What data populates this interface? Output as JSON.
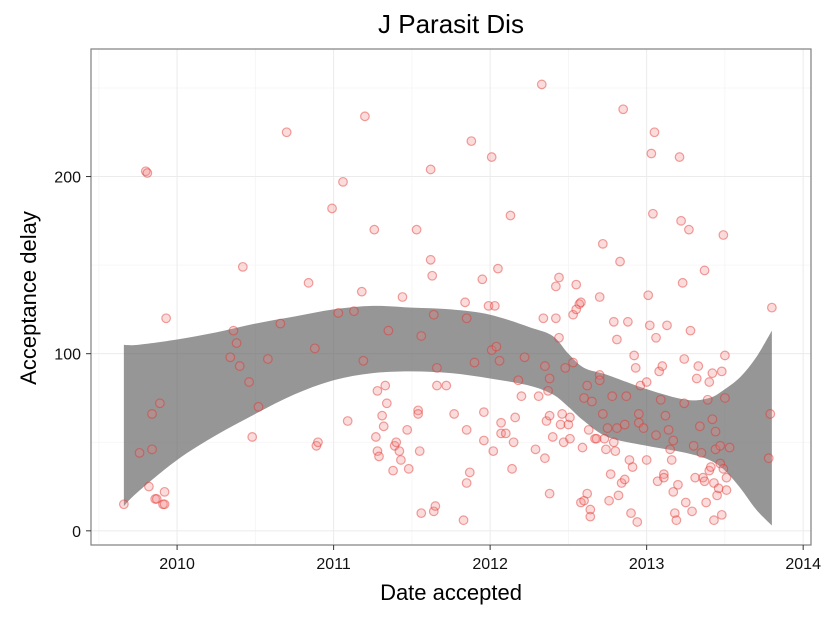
{
  "chart_data": {
    "type": "scatter",
    "title": "J Parasit Dis",
    "xlabel": "Date accepted",
    "ylabel": "Acceptance delay",
    "xlim": [
      2009.45,
      2014.05
    ],
    "ylim": [
      -8,
      272
    ],
    "x_ticks": [
      2010,
      2011,
      2012,
      2013,
      2014
    ],
    "x_tick_labels": [
      "2010",
      "2011",
      "2012",
      "2013",
      "2014"
    ],
    "y_ticks": [
      0,
      100,
      200
    ],
    "y_tick_labels": [
      "0",
      "100",
      "200"
    ],
    "grid": true,
    "legend": "none",
    "point_color": "#f08080",
    "band_color": "#5a5a5a",
    "points": [
      [
        2009.66,
        15
      ],
      [
        2009.76,
        44
      ],
      [
        2009.8,
        203
      ],
      [
        2009.81,
        202
      ],
      [
        2009.82,
        25
      ],
      [
        2009.84,
        66
      ],
      [
        2009.84,
        46
      ],
      [
        2009.86,
        18
      ],
      [
        2009.87,
        18
      ],
      [
        2009.89,
        72
      ],
      [
        2009.91,
        15
      ],
      [
        2009.92,
        15
      ],
      [
        2009.92,
        22
      ],
      [
        2009.93,
        120
      ],
      [
        2010.34,
        98
      ],
      [
        2010.36,
        113
      ],
      [
        2010.38,
        106
      ],
      [
        2010.4,
        93
      ],
      [
        2010.42,
        149
      ],
      [
        2010.46,
        84
      ],
      [
        2010.48,
        53
      ],
      [
        2010.52,
        70
      ],
      [
        2010.58,
        97
      ],
      [
        2010.66,
        117
      ],
      [
        2010.7,
        225
      ],
      [
        2010.84,
        140
      ],
      [
        2010.88,
        103
      ],
      [
        2010.89,
        48
      ],
      [
        2010.9,
        50
      ],
      [
        2010.99,
        182
      ],
      [
        2011.03,
        123
      ],
      [
        2011.06,
        197
      ],
      [
        2011.09,
        62
      ],
      [
        2011.13,
        124
      ],
      [
        2011.18,
        135
      ],
      [
        2011.19,
        96
      ],
      [
        2011.2,
        234
      ],
      [
        2011.26,
        170
      ],
      [
        2011.27,
        53
      ],
      [
        2011.28,
        79
      ],
      [
        2011.28,
        45
      ],
      [
        2011.29,
        42
      ],
      [
        2011.31,
        65
      ],
      [
        2011.32,
        59
      ],
      [
        2011.33,
        82
      ],
      [
        2011.34,
        72
      ],
      [
        2011.35,
        113
      ],
      [
        2011.38,
        34
      ],
      [
        2011.39,
        48
      ],
      [
        2011.4,
        50
      ],
      [
        2011.42,
        45
      ],
      [
        2011.43,
        40
      ],
      [
        2011.44,
        132
      ],
      [
        2011.47,
        57
      ],
      [
        2011.48,
        35
      ],
      [
        2011.53,
        170
      ],
      [
        2011.54,
        68
      ],
      [
        2011.54,
        66
      ],
      [
        2011.55,
        45
      ],
      [
        2011.56,
        10
      ],
      [
        2011.56,
        110
      ],
      [
        2011.62,
        204
      ],
      [
        2011.62,
        153
      ],
      [
        2011.63,
        144
      ],
      [
        2011.64,
        122
      ],
      [
        2011.64,
        11
      ],
      [
        2011.65,
        14
      ],
      [
        2011.66,
        82
      ],
      [
        2011.66,
        92
      ],
      [
        2011.72,
        82
      ],
      [
        2011.77,
        66
      ],
      [
        2011.83,
        6
      ],
      [
        2011.84,
        129
      ],
      [
        2011.85,
        120
      ],
      [
        2011.85,
        57
      ],
      [
        2011.85,
        27
      ],
      [
        2011.87,
        33
      ],
      [
        2011.88,
        220
      ],
      [
        2011.9,
        95
      ],
      [
        2011.95,
        142
      ],
      [
        2011.96,
        67
      ],
      [
        2011.96,
        51
      ],
      [
        2011.99,
        127
      ],
      [
        2012.01,
        211
      ],
      [
        2012.01,
        102
      ],
      [
        2012.02,
        45
      ],
      [
        2012.03,
        127
      ],
      [
        2012.04,
        104
      ],
      [
        2012.05,
        148
      ],
      [
        2012.06,
        96
      ],
      [
        2012.07,
        61
      ],
      [
        2012.07,
        55
      ],
      [
        2012.1,
        55
      ],
      [
        2012.13,
        178
      ],
      [
        2012.14,
        35
      ],
      [
        2012.15,
        50
      ],
      [
        2012.16,
        64
      ],
      [
        2012.18,
        85
      ],
      [
        2012.2,
        76
      ],
      [
        2012.22,
        98
      ],
      [
        2012.29,
        46
      ],
      [
        2012.31,
        76
      ],
      [
        2012.33,
        252
      ],
      [
        2012.34,
        120
      ],
      [
        2012.35,
        93
      ],
      [
        2012.35,
        41
      ],
      [
        2012.36,
        62
      ],
      [
        2012.37,
        79
      ],
      [
        2012.38,
        65
      ],
      [
        2012.38,
        21
      ],
      [
        2012.38,
        86
      ],
      [
        2012.4,
        53
      ],
      [
        2012.42,
        138
      ],
      [
        2012.42,
        120
      ],
      [
        2012.44,
        143
      ],
      [
        2012.44,
        109
      ],
      [
        2012.45,
        60
      ],
      [
        2012.46,
        66
      ],
      [
        2012.47,
        50
      ],
      [
        2012.48,
        92
      ],
      [
        2012.5,
        60
      ],
      [
        2012.51,
        64
      ],
      [
        2012.51,
        52
      ],
      [
        2012.53,
        122
      ],
      [
        2012.53,
        95
      ],
      [
        2012.55,
        125
      ],
      [
        2012.55,
        139
      ],
      [
        2012.57,
        128
      ],
      [
        2012.58,
        129
      ],
      [
        2012.58,
        16
      ],
      [
        2012.59,
        47
      ],
      [
        2012.6,
        17
      ],
      [
        2012.6,
        75
      ],
      [
        2012.62,
        82
      ],
      [
        2012.62,
        21
      ],
      [
        2012.63,
        57
      ],
      [
        2012.64,
        12
      ],
      [
        2012.64,
        8
      ],
      [
        2012.65,
        73
      ],
      [
        2012.67,
        52
      ],
      [
        2012.68,
        52
      ],
      [
        2012.7,
        132
      ],
      [
        2012.7,
        88
      ],
      [
        2012.7,
        85
      ],
      [
        2012.72,
        162
      ],
      [
        2012.72,
        66
      ],
      [
        2012.73,
        52
      ],
      [
        2012.74,
        46
      ],
      [
        2012.75,
        58
      ],
      [
        2012.76,
        17
      ],
      [
        2012.77,
        32
      ],
      [
        2012.78,
        76
      ],
      [
        2012.79,
        118
      ],
      [
        2012.79,
        50
      ],
      [
        2012.8,
        45
      ],
      [
        2012.81,
        108
      ],
      [
        2012.81,
        58
      ],
      [
        2012.82,
        20
      ],
      [
        2012.83,
        152
      ],
      [
        2012.84,
        27
      ],
      [
        2012.85,
        238
      ],
      [
        2012.86,
        60
      ],
      [
        2012.86,
        29
      ],
      [
        2012.87,
        76
      ],
      [
        2012.88,
        118
      ],
      [
        2012.89,
        40
      ],
      [
        2012.9,
        10
      ],
      [
        2012.91,
        36
      ],
      [
        2012.92,
        99
      ],
      [
        2012.93,
        92
      ],
      [
        2012.94,
        5
      ],
      [
        2012.95,
        66
      ],
      [
        2012.95,
        61
      ],
      [
        2012.96,
        82
      ],
      [
        2012.98,
        58
      ],
      [
        2013.0,
        84
      ],
      [
        2013.0,
        40
      ],
      [
        2013.01,
        133
      ],
      [
        2013.02,
        116
      ],
      [
        2013.03,
        213
      ],
      [
        2013.04,
        179
      ],
      [
        2013.05,
        225
      ],
      [
        2013.06,
        109
      ],
      [
        2013.06,
        54
      ],
      [
        2013.07,
        28
      ],
      [
        2013.08,
        90
      ],
      [
        2013.09,
        74
      ],
      [
        2013.1,
        93
      ],
      [
        2013.11,
        32
      ],
      [
        2013.11,
        30
      ],
      [
        2013.12,
        65
      ],
      [
        2013.13,
        116
      ],
      [
        2013.14,
        57
      ],
      [
        2013.15,
        46
      ],
      [
        2013.16,
        40
      ],
      [
        2013.17,
        22
      ],
      [
        2013.17,
        51
      ],
      [
        2013.18,
        10
      ],
      [
        2013.19,
        6
      ],
      [
        2013.2,
        26
      ],
      [
        2013.21,
        211
      ],
      [
        2013.22,
        175
      ],
      [
        2013.23,
        140
      ],
      [
        2013.24,
        97
      ],
      [
        2013.24,
        72
      ],
      [
        2013.25,
        16
      ],
      [
        2013.27,
        170
      ],
      [
        2013.28,
        113
      ],
      [
        2013.29,
        11
      ],
      [
        2013.3,
        48
      ],
      [
        2013.31,
        30
      ],
      [
        2013.32,
        86
      ],
      [
        2013.33,
        93
      ],
      [
        2013.34,
        59
      ],
      [
        2013.35,
        44
      ],
      [
        2013.36,
        30
      ],
      [
        2013.37,
        147
      ],
      [
        2013.37,
        28
      ],
      [
        2013.38,
        16
      ],
      [
        2013.39,
        74
      ],
      [
        2013.4,
        34
      ],
      [
        2013.4,
        84
      ],
      [
        2013.41,
        36
      ],
      [
        2013.42,
        89
      ],
      [
        2013.42,
        63
      ],
      [
        2013.43,
        27
      ],
      [
        2013.43,
        6
      ],
      [
        2013.44,
        56
      ],
      [
        2013.44,
        46
      ],
      [
        2013.45,
        20
      ],
      [
        2013.46,
        24
      ],
      [
        2013.47,
        48
      ],
      [
        2013.47,
        38
      ],
      [
        2013.48,
        90
      ],
      [
        2013.48,
        9
      ],
      [
        2013.49,
        167
      ],
      [
        2013.49,
        35
      ],
      [
        2013.5,
        99
      ],
      [
        2013.5,
        75
      ],
      [
        2013.51,
        30
      ],
      [
        2013.51,
        23
      ],
      [
        2013.53,
        47
      ],
      [
        2013.78,
        41
      ],
      [
        2013.79,
        66
      ],
      [
        2013.8,
        126
      ]
    ],
    "smooth_band": {
      "x": [
        2009.66,
        2009.75,
        2010.0,
        2010.25,
        2010.5,
        2010.75,
        2011.0,
        2011.25,
        2011.5,
        2011.75,
        2012.0,
        2012.25,
        2012.4,
        2012.5,
        2012.6,
        2012.75,
        2013.0,
        2013.25,
        2013.4,
        2013.5,
        2013.6,
        2013.7,
        2013.8
      ],
      "upper": [
        105,
        105,
        108,
        112,
        117,
        121,
        125,
        127,
        126,
        125,
        122,
        115,
        110,
        100,
        92,
        88,
        80,
        74,
        75,
        80,
        87,
        98,
        113
      ],
      "lower": [
        14,
        22,
        40,
        54,
        66,
        77,
        85,
        89,
        90,
        89,
        86,
        82,
        77,
        70,
        62,
        53,
        48,
        44,
        40,
        34,
        24,
        12,
        3
      ]
    }
  }
}
